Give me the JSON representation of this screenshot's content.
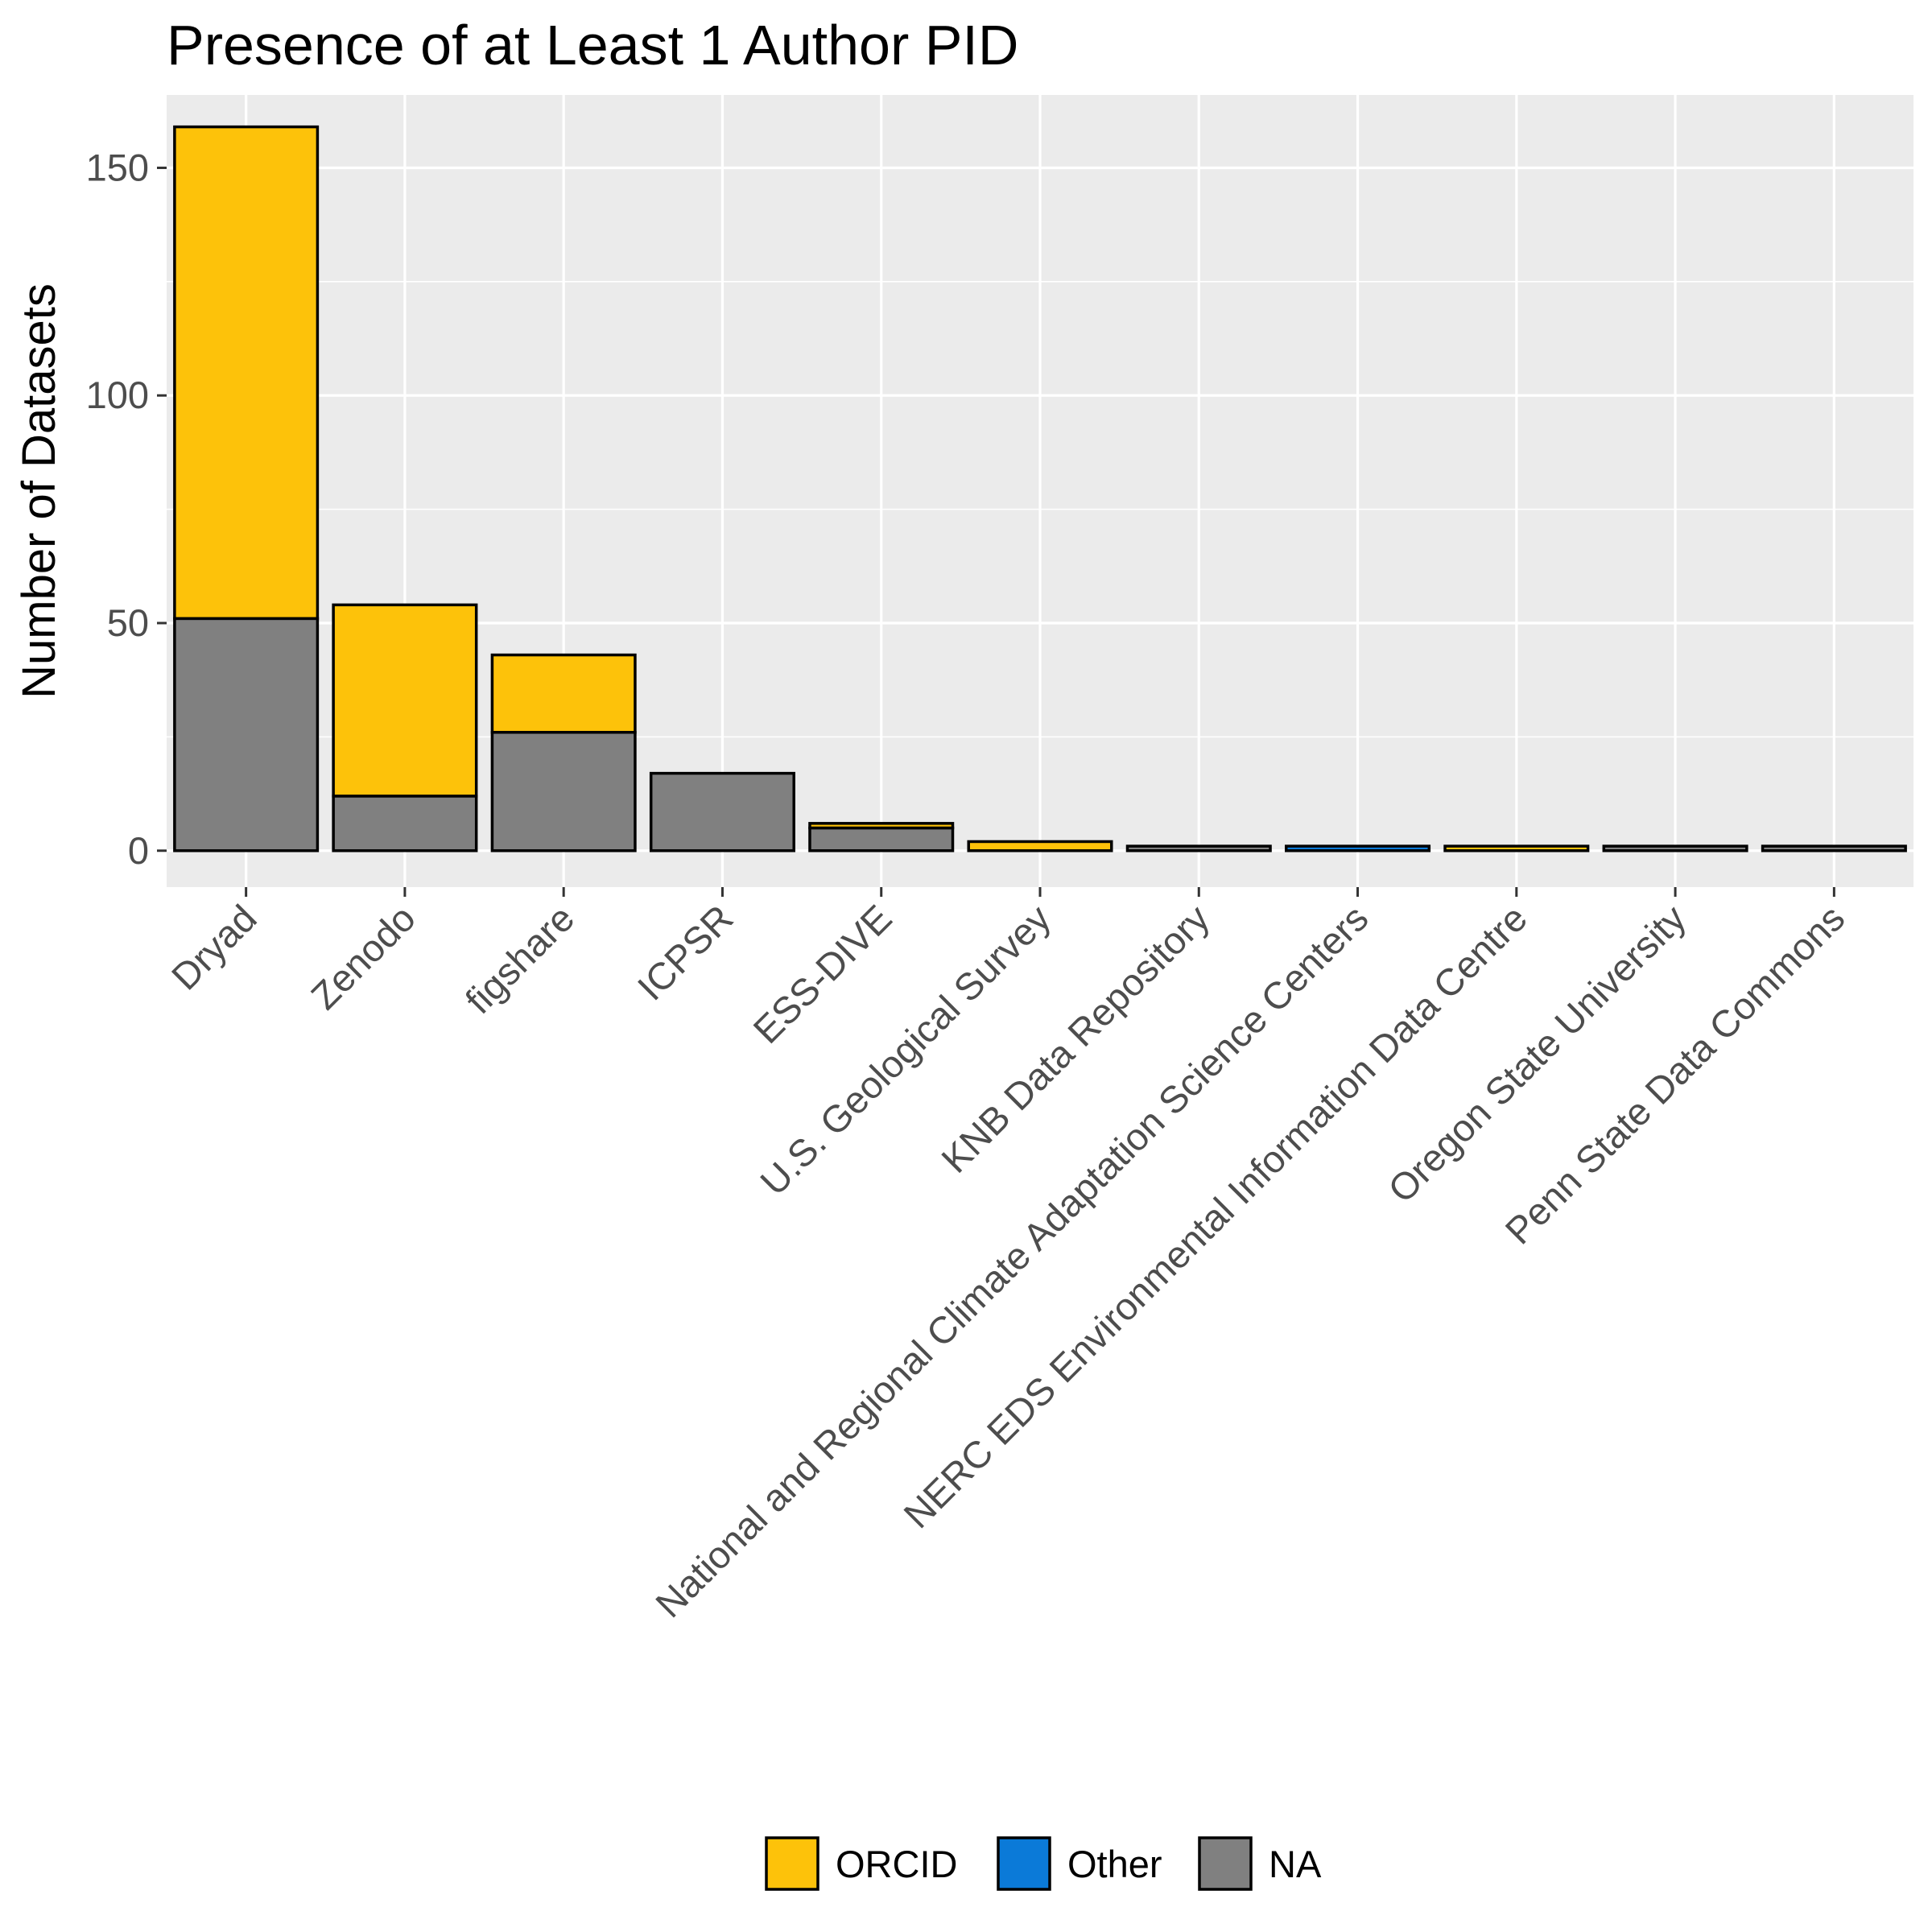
{
  "chart_data": {
    "type": "bar",
    "stacked": true,
    "title": "Presence of at Least 1 Author PID",
    "xlabel": "",
    "ylabel": "Number of Datasets",
    "ylim": [
      -8,
      166
    ],
    "yticks": [
      0,
      50,
      100,
      150
    ],
    "grid": true,
    "legend_position": "bottom",
    "categories": [
      "Dryad",
      "Zenodo",
      "figshare",
      "ICPSR",
      "ESS-DIVE",
      "U.S. Geological Survey",
      "KNB Data Repository",
      "National and Regional Climate Adaptation Science Centers",
      "NERC EDS Environmental Information Data Centre",
      "Oregon State University",
      "Penn State Data Commons"
    ],
    "series": [
      {
        "name": "NA",
        "color": "#808080",
        "values": [
          51,
          12,
          26,
          17,
          5,
          0,
          1,
          0,
          0,
          1,
          1
        ]
      },
      {
        "name": "Other",
        "color": "#0b7ad8",
        "values": [
          0,
          0,
          0,
          0,
          0,
          0,
          0,
          1,
          0,
          0,
          0
        ]
      },
      {
        "name": "ORCID",
        "color": "#fdc20a",
        "values": [
          108,
          42,
          17,
          0,
          1,
          2,
          0,
          0,
          1,
          0,
          0
        ]
      }
    ],
    "legend": [
      {
        "name": "ORCID",
        "color": "#fdc20a"
      },
      {
        "name": "Other",
        "color": "#0b7ad8"
      },
      {
        "name": "NA",
        "color": "#808080"
      }
    ]
  }
}
